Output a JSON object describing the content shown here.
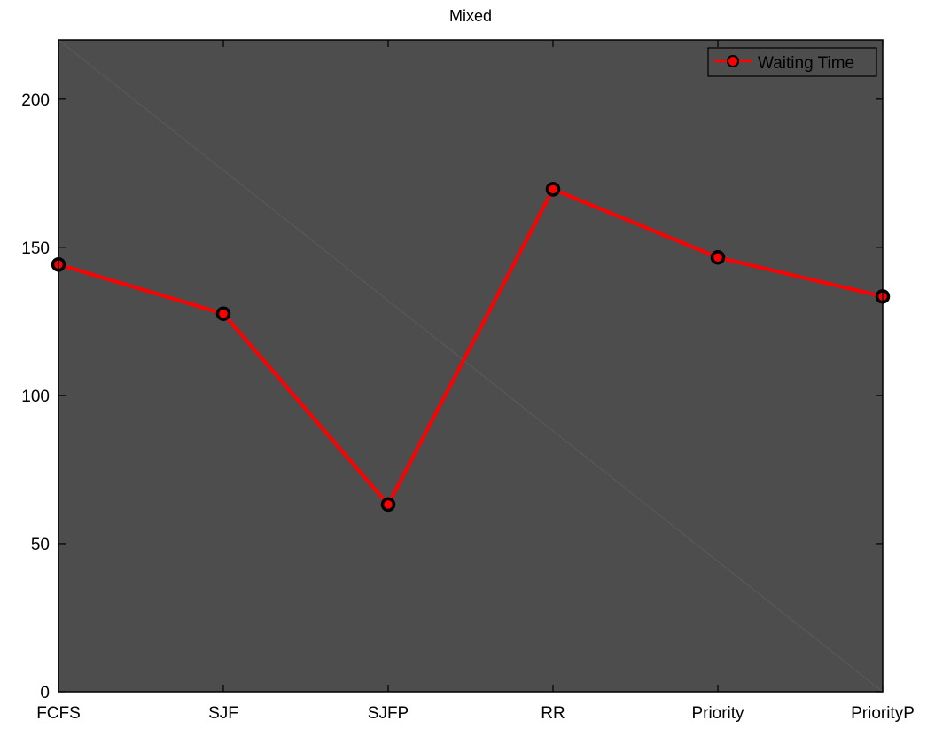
{
  "chart_data": {
    "type": "line",
    "title": "Mixed",
    "xlabel": "",
    "ylabel": "",
    "categories": [
      "FCFS",
      "SJF",
      "SJFP",
      "RR",
      "Priority",
      "PriorityP"
    ],
    "series": [
      {
        "name": "Waiting Time",
        "values": [
          144.2,
          127.6,
          63.2,
          169.6,
          146.6,
          133.4
        ],
        "color": "#ff0000",
        "marker": "circle",
        "marker_edge_color": "#000000"
      }
    ],
    "ylim": [
      0,
      220
    ],
    "yticks": [
      0,
      50,
      100,
      150,
      200
    ],
    "grid": false,
    "legend_position": "top-right",
    "background_color": "#4d4d4d",
    "page_background": "#ffffff"
  }
}
